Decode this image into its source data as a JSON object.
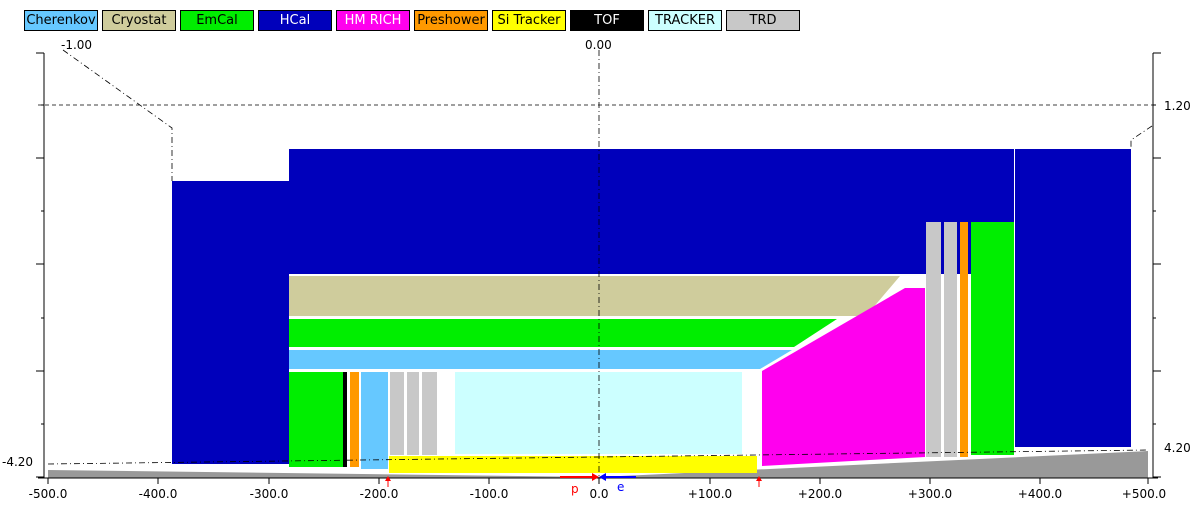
{
  "legend": [
    {
      "label": "Cherenkov",
      "color": "#66c8ff",
      "text_color": "#000000"
    },
    {
      "label": "Cryostat",
      "color": "#cfcc9c",
      "text_color": "#000000"
    },
    {
      "label": "EmCal",
      "color": "#00ee00",
      "text_color": "#000000"
    },
    {
      "label": "HCal",
      "color": "#0000bb",
      "text_color": "#ffffff"
    },
    {
      "label": "HM RICH",
      "color": "#ff00ee",
      "text_color": "#ffffff"
    },
    {
      "label": "Preshower",
      "color": "#ff9900",
      "text_color": "#000000"
    },
    {
      "label": "Si Tracker",
      "color": "#ffff00",
      "text_color": "#000000"
    },
    {
      "label": "TOF",
      "color": "#000000",
      "text_color": "#ffffff"
    },
    {
      "label": "TRACKER",
      "color": "#ccffff",
      "text_color": "#000000"
    },
    {
      "label": "TRD",
      "color": "#c8c8c8",
      "text_color": "#000000"
    }
  ],
  "eta_labels": {
    "top_left": "-1.00",
    "top_center": "0.00",
    "right_upper": "1.20",
    "right_lower": "4.20",
    "left_lower": "-4.20"
  },
  "x_axis": {
    "ticks": [
      "-500.0",
      "-400.0",
      "-300.0",
      "-200.0",
      "-100.0",
      "0.0",
      "+100.0",
      "+200.0",
      "+300.0",
      "+400.0",
      "+500.0"
    ]
  },
  "beams": {
    "proton_label": "p",
    "electron_label": "e",
    "proton_color": "#ff0000",
    "electron_color": "#0000ff"
  }
}
